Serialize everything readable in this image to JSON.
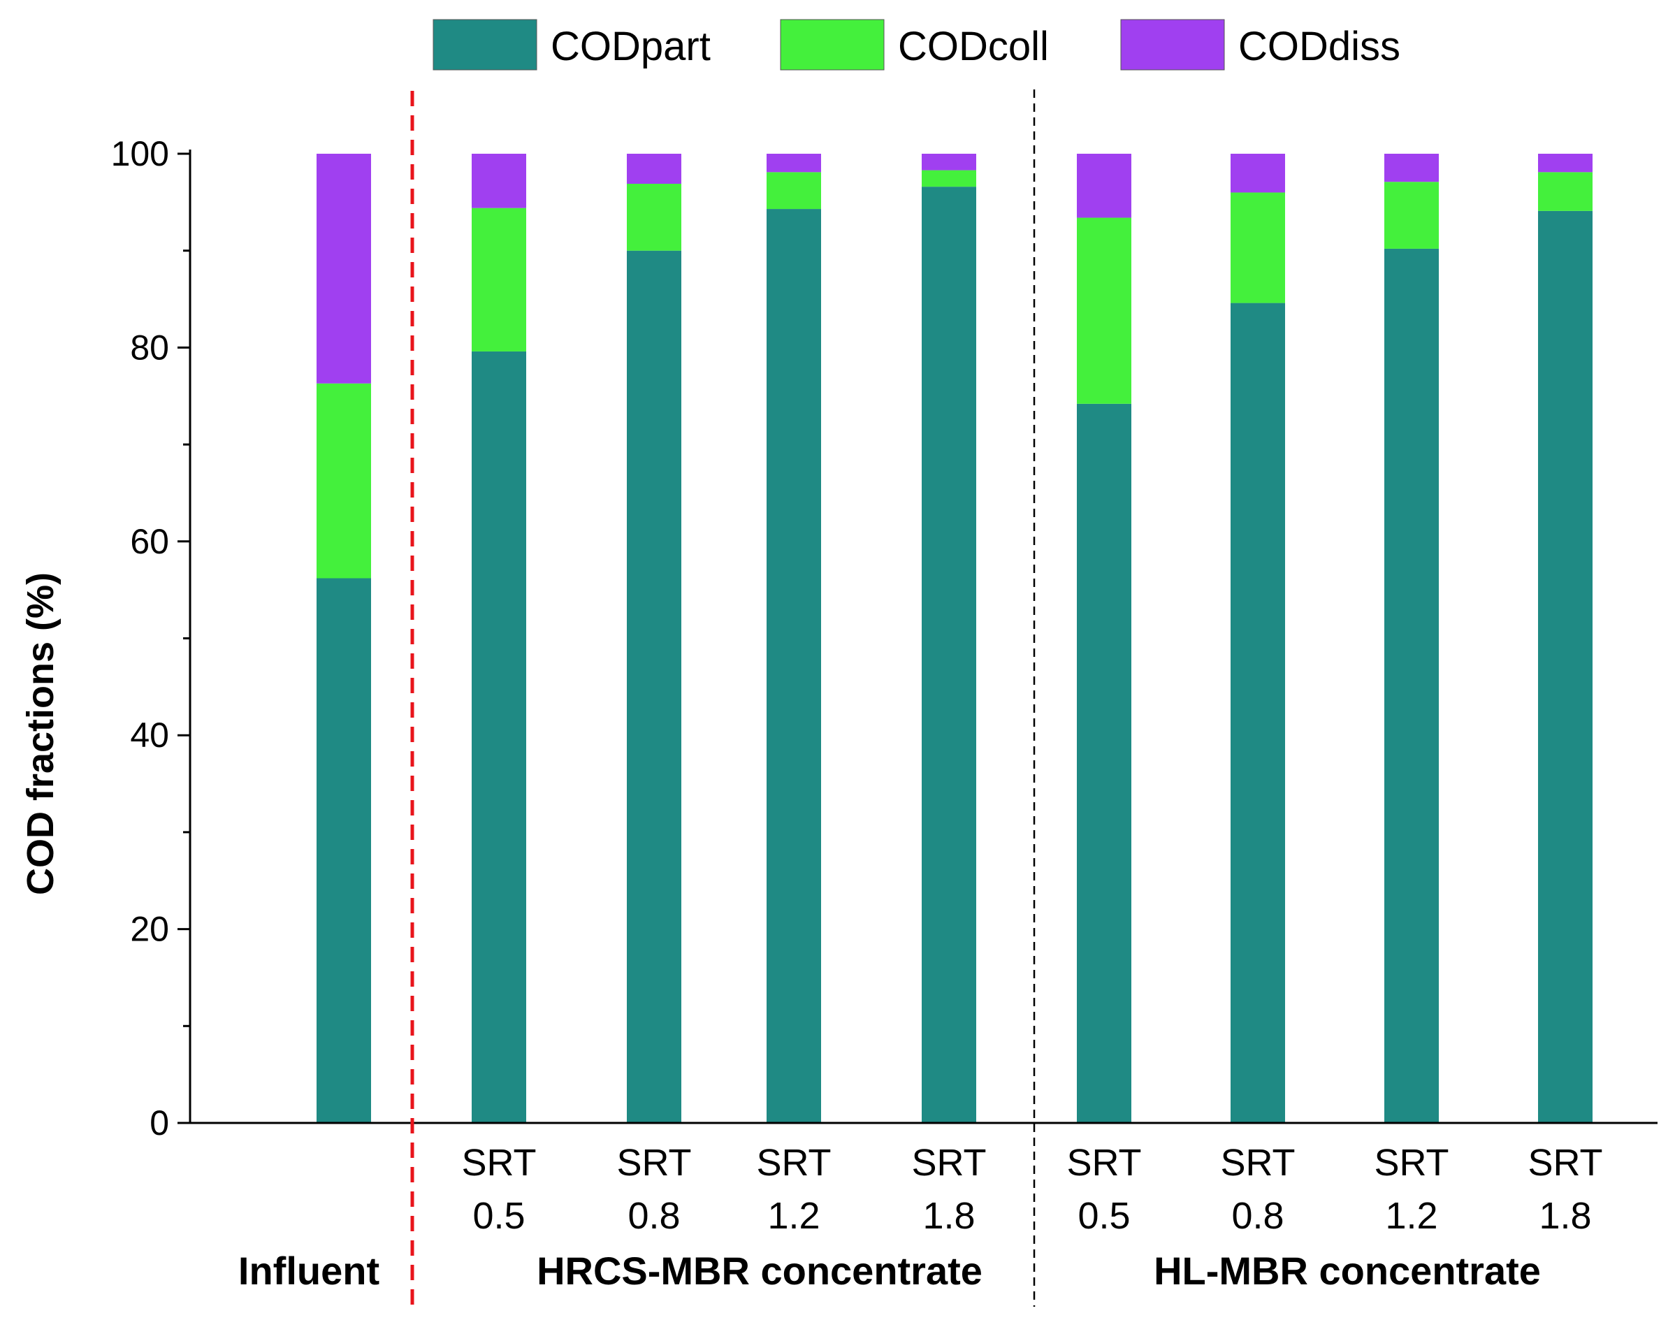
{
  "chart_data": {
    "type": "bar",
    "stacked": true,
    "title": "",
    "xlabel": "",
    "ylabel": "COD fractions (%)",
    "ylim": [
      0,
      100
    ],
    "yticks": [
      0,
      20,
      40,
      60,
      80,
      100
    ],
    "grid": false,
    "legend_position": "top",
    "categories": [
      {
        "line1": "",
        "line2": ""
      },
      {
        "line1": "SRT",
        "line2": "0.5"
      },
      {
        "line1": "SRT",
        "line2": "0.8"
      },
      {
        "line1": "SRT",
        "line2": "1.2"
      },
      {
        "line1": "SRT",
        "line2": "1.8"
      },
      {
        "line1": "SRT",
        "line2": "0.5"
      },
      {
        "line1": "SRT",
        "line2": "0.8"
      },
      {
        "line1": "SRT",
        "line2": "1.2"
      },
      {
        "line1": "SRT",
        "line2": "1.8"
      }
    ],
    "groups": [
      {
        "label": "Influent",
        "start": 0,
        "end": 0
      },
      {
        "label": "HRCS-MBR concentrate",
        "start": 1,
        "end": 4
      },
      {
        "label": "HL-MBR concentrate",
        "start": 5,
        "end": 8
      }
    ],
    "series": [
      {
        "name": "CODpart",
        "color": "#1f8a84",
        "values": [
          56.2,
          79.6,
          90.0,
          94.3,
          96.6,
          74.2,
          84.6,
          90.2,
          94.1
        ]
      },
      {
        "name": "CODcoll",
        "color": "#44f03c",
        "values": [
          20.1,
          14.8,
          6.9,
          3.8,
          1.7,
          19.2,
          11.4,
          6.9,
          4.0
        ]
      },
      {
        "name": "CODdiss",
        "color": "#a040f0",
        "values": [
          23.7,
          5.6,
          3.1,
          1.9,
          1.7,
          6.6,
          4.0,
          2.9,
          1.9
        ]
      }
    ]
  }
}
